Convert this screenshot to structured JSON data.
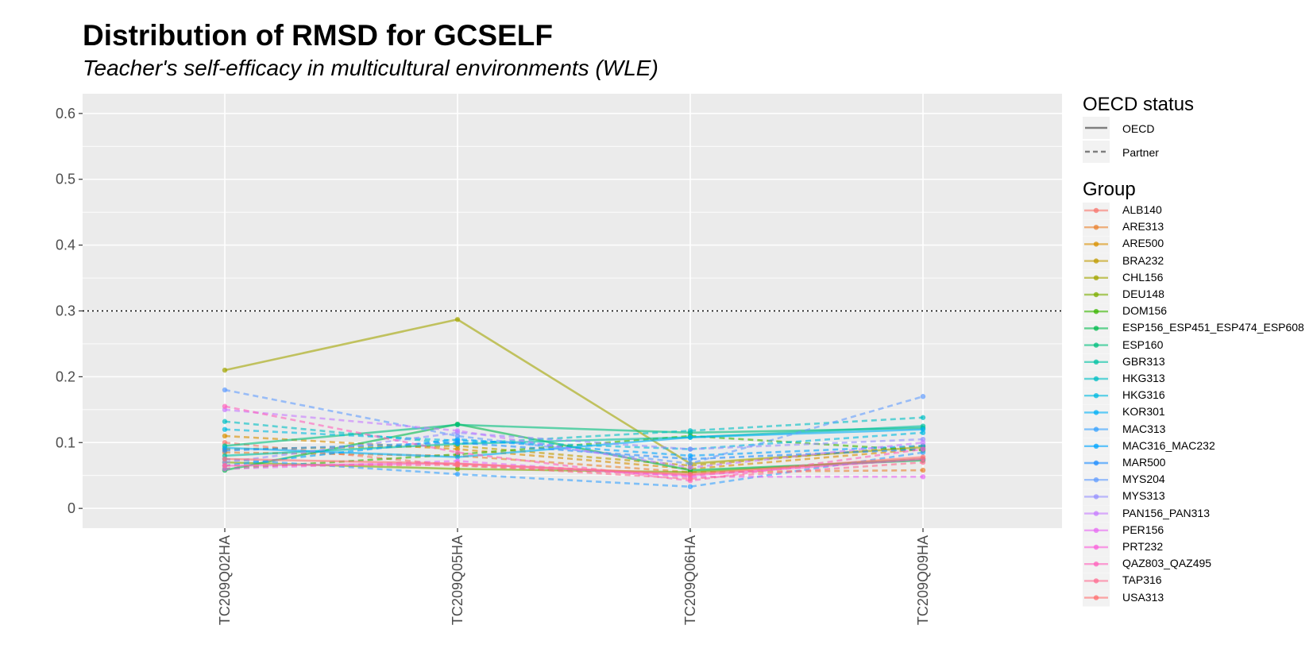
{
  "title": "Distribution of RMSD for GCSELF",
  "subtitle": "Teacher's self-efficacy in multicultural environments (WLE)",
  "legend": {
    "linetype_title": "OECD status",
    "linetypes": [
      {
        "label": "OECD",
        "style": "solid"
      },
      {
        "label": "Partner",
        "style": "dashed"
      }
    ],
    "group_title": "Group"
  },
  "chart_data": {
    "type": "line",
    "categories": [
      "TC209Q02HA",
      "TC209Q05HA",
      "TC209Q06HA",
      "TC209Q09HA"
    ],
    "ylim": [
      -0.03,
      0.63
    ],
    "yticks": [
      "0",
      "0.1",
      "0.2",
      "0.3",
      "0.4",
      "0.5",
      "0.6"
    ],
    "ytick_values": [
      0,
      0.1,
      0.2,
      0.3,
      0.4,
      0.5,
      0.6
    ],
    "reference_line": {
      "y": 0.3,
      "style": "dotted",
      "color": "#000000"
    },
    "grid": true,
    "legend_position": "right",
    "xlabel": "",
    "ylabel": "",
    "series": [
      {
        "name": "ALB140",
        "status": "Partner",
        "color": "#F8766D",
        "values": [
          0.1,
          0.065,
          0.05,
          0.075
        ]
      },
      {
        "name": "ARE313",
        "status": "Partner",
        "color": "#EA8331",
        "values": [
          0.085,
          0.08,
          0.055,
          0.058
        ]
      },
      {
        "name": "ARE500",
        "status": "Partner",
        "color": "#D89000",
        "values": [
          0.11,
          0.09,
          0.06,
          0.09
        ]
      },
      {
        "name": "BRA232",
        "status": "Partner",
        "color": "#C09B00",
        "values": [
          0.09,
          0.095,
          0.065,
          0.095
        ]
      },
      {
        "name": "CHL156",
        "status": "OECD",
        "color": "#A3A500",
        "values": [
          0.21,
          0.287,
          0.068,
          0.093
        ]
      },
      {
        "name": "DEU148",
        "status": "OECD",
        "color": "#7CAE00",
        "values": [
          0.07,
          0.06,
          0.055,
          0.075
        ]
      },
      {
        "name": "DOM156",
        "status": "Partner",
        "color": "#39B600",
        "values": [
          0.06,
          0.082,
          0.11,
          0.088
        ]
      },
      {
        "name": "ESP156_ESP451_ESP474_ESP608",
        "status": "OECD",
        "color": "#00BB4E",
        "values": [
          0.058,
          0.128,
          0.058,
          0.073
        ]
      },
      {
        "name": "ESP160",
        "status": "OECD",
        "color": "#00BF7D",
        "values": [
          0.095,
          0.127,
          0.115,
          0.122
        ]
      },
      {
        "name": "GBR313",
        "status": "OECD",
        "color": "#00C1A3",
        "values": [
          0.08,
          0.098,
          0.108,
          0.125
        ]
      },
      {
        "name": "HKG313",
        "status": "Partner",
        "color": "#00BFC4",
        "values": [
          0.132,
          0.098,
          0.118,
          0.138
        ]
      },
      {
        "name": "HKG316",
        "status": "Partner",
        "color": "#00BAE0",
        "values": [
          0.12,
          0.103,
          0.09,
          0.115
        ]
      },
      {
        "name": "KOR301",
        "status": "OECD",
        "color": "#00B0F6",
        "values": [
          0.092,
          0.078,
          0.108,
          0.12
        ]
      },
      {
        "name": "MAC313",
        "status": "Partner",
        "color": "#35A2FF",
        "values": [
          0.075,
          0.052,
          0.033,
          0.085
        ]
      },
      {
        "name": "MAC316_MAC232",
        "status": "Partner",
        "color": "#00A5FF",
        "values": [
          0.065,
          0.105,
          0.08,
          0.095
        ]
      },
      {
        "name": "MAR500",
        "status": "Partner",
        "color": "#1F8EFF",
        "values": [
          0.088,
          0.1,
          0.075,
          0.09
        ]
      },
      {
        "name": "MYS204",
        "status": "Partner",
        "color": "#619CFF",
        "values": [
          0.18,
          0.11,
          0.068,
          0.17
        ]
      },
      {
        "name": "MYS313",
        "status": "Partner",
        "color": "#9590FF",
        "values": [
          0.07,
          0.115,
          0.09,
          0.105
        ]
      },
      {
        "name": "PAN156_PAN313",
        "status": "Partner",
        "color": "#C77CFF",
        "values": [
          0.15,
          0.118,
          0.062,
          0.1
        ]
      },
      {
        "name": "PER156",
        "status": "Partner",
        "color": "#E76BF3",
        "values": [
          0.06,
          0.072,
          0.048,
          0.048
        ]
      },
      {
        "name": "PRT232",
        "status": "OECD",
        "color": "#FA62DB",
        "values": [
          0.065,
          0.068,
          0.05,
          0.075
        ]
      },
      {
        "name": "QAZ803_QAZ495",
        "status": "Partner",
        "color": "#FF62BC",
        "values": [
          0.155,
          0.085,
          0.042,
          0.09
        ]
      },
      {
        "name": "TAP316",
        "status": "Partner",
        "color": "#FF6C91",
        "values": [
          0.065,
          0.066,
          0.045,
          0.07
        ]
      },
      {
        "name": "USA313",
        "status": "OECD",
        "color": "#FF7070",
        "values": [
          0.075,
          0.068,
          0.052,
          0.078
        ]
      }
    ]
  }
}
